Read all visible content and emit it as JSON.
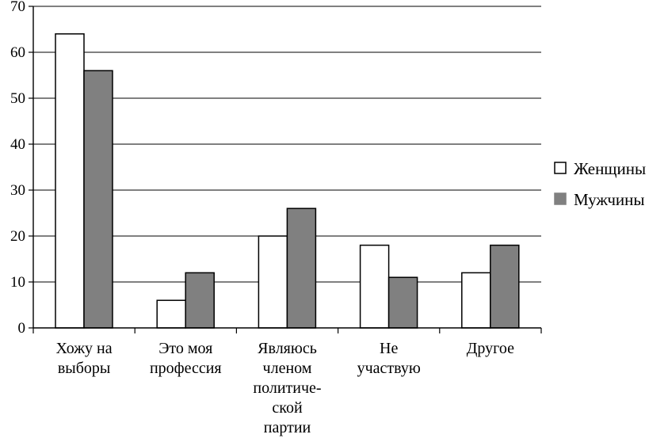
{
  "chart_data": {
    "type": "bar",
    "categories": [
      [
        "Хожу на",
        "выборы"
      ],
      [
        "Это моя",
        "профессия"
      ],
      [
        "Являюсь",
        "членом",
        "политиче-",
        "ской",
        "партии"
      ],
      [
        "Не",
        "участвую"
      ],
      [
        "Другое"
      ]
    ],
    "series": [
      {
        "name": "Женщины",
        "values": [
          64,
          6,
          20,
          18,
          12
        ],
        "color": "#ffffff"
      },
      {
        "name": "Мужчины",
        "values": [
          56,
          12,
          26,
          11,
          18
        ],
        "color": "#808080"
      }
    ],
    "ylim": [
      0,
      70
    ],
    "yticks": [
      0,
      10,
      20,
      30,
      40,
      50,
      60,
      70
    ],
    "grid": true,
    "legend": "right",
    "title": "",
    "xlabel": "",
    "ylabel": ""
  }
}
